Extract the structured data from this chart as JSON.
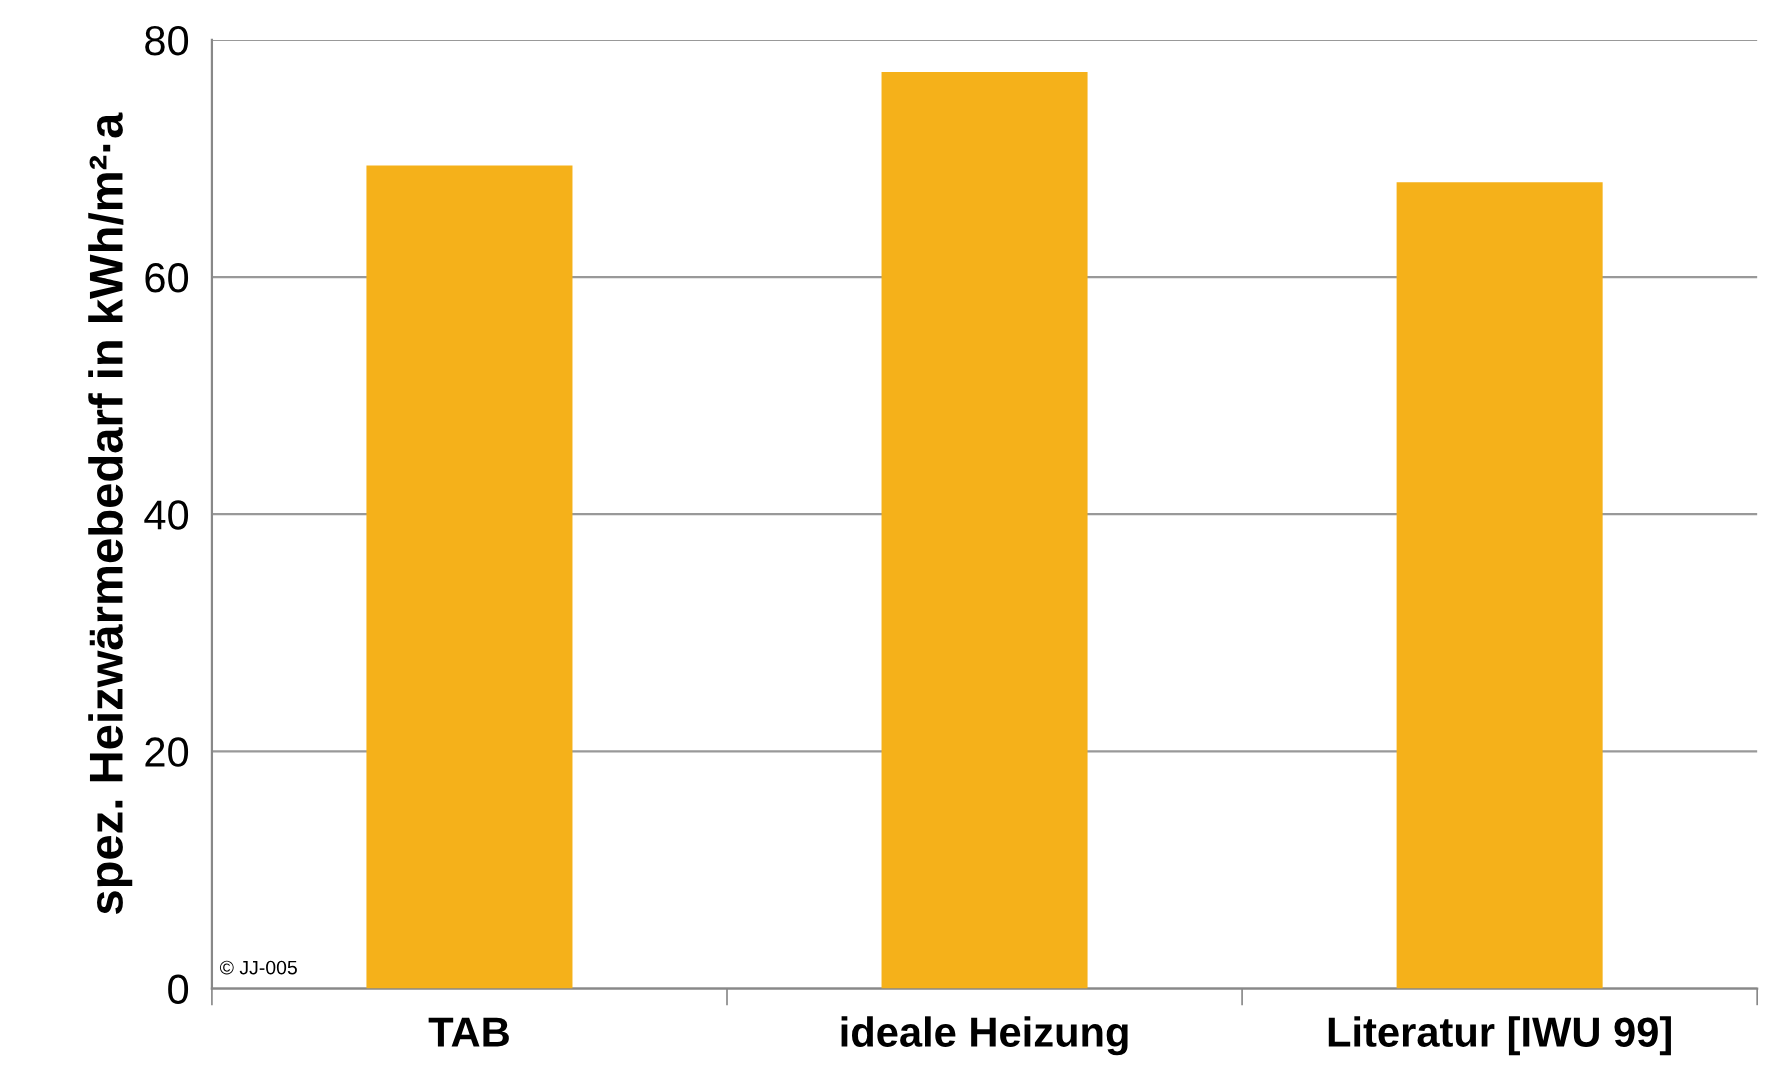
{
  "chart_data": {
    "type": "bar",
    "ylabel": "spez. Heizwärmebedarf in kWh/m²·a",
    "categories": [
      "TAB",
      "ideale Heizung",
      "Literatur [IWU 99]"
    ],
    "values": [
      69.4,
      77.3,
      68.0
    ],
    "color": "#f5b11a",
    "ylim": [
      0,
      80
    ],
    "yticks": [
      0,
      20,
      40,
      60,
      80
    ],
    "grid": "y",
    "annotations": [
      "© JJ-005"
    ]
  }
}
